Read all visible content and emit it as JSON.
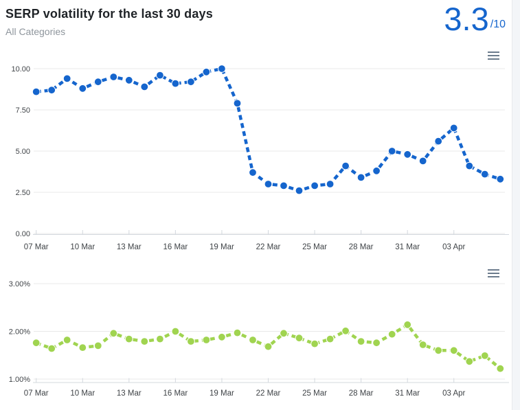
{
  "header": {
    "title": "SERP volatility for the last 30 days",
    "subtitle": "All Categories",
    "score": "3.3",
    "score_suffix": "/10",
    "score_color": "#1565cd"
  },
  "icons": {
    "chart1_menu": "hamburger-menu",
    "chart2_menu": "hamburger-menu"
  },
  "colors": {
    "card_background": "#ffffff",
    "page_band": "#f3f5f8",
    "grid": "#e8e8e8",
    "axis_line": "#d3d8de",
    "axis_label": "#3f4347",
    "blue_series": "#1565cd",
    "green_series": "#a0d450",
    "title_text": "#1f2327",
    "subtitle_text": "#8e959c"
  },
  "chart_data": [
    {
      "type": "line",
      "id": "volatility-score-chart",
      "line_style": "dashed",
      "marker": "circle",
      "grid": true,
      "legend": "none",
      "color": "#1565cd",
      "ylim": [
        0,
        10
      ],
      "yticks": [
        {
          "v": 0,
          "label": "0.00"
        },
        {
          "v": 2.5,
          "label": "2.50"
        },
        {
          "v": 5,
          "label": "5.00"
        },
        {
          "v": 7.5,
          "label": "7.50"
        },
        {
          "v": 10,
          "label": "10.00"
        }
      ],
      "xticks": [
        {
          "i": 0,
          "label": "07 Mar"
        },
        {
          "i": 3,
          "label": "10 Mar"
        },
        {
          "i": 6,
          "label": "13 Mar"
        },
        {
          "i": 9,
          "label": "16 Mar"
        },
        {
          "i": 12,
          "label": "19 Mar"
        },
        {
          "i": 15,
          "label": "22 Mar"
        },
        {
          "i": 18,
          "label": "25 Mar"
        },
        {
          "i": 21,
          "label": "28 Mar"
        },
        {
          "i": 24,
          "label": "31 Mar"
        },
        {
          "i": 27,
          "label": "03 Apr"
        }
      ],
      "x": [
        "07 Mar",
        "08 Mar",
        "09 Mar",
        "10 Mar",
        "11 Mar",
        "12 Mar",
        "13 Mar",
        "14 Mar",
        "15 Mar",
        "16 Mar",
        "17 Mar",
        "18 Mar",
        "19 Mar",
        "20 Mar",
        "21 Mar",
        "22 Mar",
        "23 Mar",
        "24 Mar",
        "25 Mar",
        "26 Mar",
        "27 Mar",
        "28 Mar",
        "29 Mar",
        "30 Mar",
        "31 Mar",
        "01 Apr",
        "02 Apr",
        "03 Apr",
        "04 Apr",
        "05 Apr",
        "06 Apr"
      ],
      "values": [
        8.6,
        8.7,
        9.4,
        8.8,
        9.2,
        9.5,
        9.3,
        8.9,
        9.6,
        9.1,
        9.2,
        9.8,
        10.0,
        7.9,
        3.7,
        3.0,
        2.9,
        2.6,
        2.9,
        3.0,
        4.1,
        3.4,
        3.8,
        5.0,
        4.8,
        4.4,
        5.6,
        6.4,
        4.1,
        3.6,
        3.3
      ]
    },
    {
      "type": "line",
      "id": "volatility-percent-chart",
      "line_style": "dashed",
      "marker": "circle",
      "grid": true,
      "legend": "none",
      "color": "#a0d450",
      "ylim": [
        1,
        3
      ],
      "yticks": [
        {
          "v": 1,
          "label": "1.00%"
        },
        {
          "v": 2,
          "label": "2.00%"
        },
        {
          "v": 3,
          "label": "3.00%"
        }
      ],
      "xticks": [
        {
          "i": 0,
          "label": "07 Mar"
        },
        {
          "i": 3,
          "label": "10 Mar"
        },
        {
          "i": 6,
          "label": "13 Mar"
        },
        {
          "i": 9,
          "label": "16 Mar"
        },
        {
          "i": 12,
          "label": "19 Mar"
        },
        {
          "i": 15,
          "label": "22 Mar"
        },
        {
          "i": 18,
          "label": "25 Mar"
        },
        {
          "i": 21,
          "label": "28 Mar"
        },
        {
          "i": 24,
          "label": "31 Mar"
        },
        {
          "i": 27,
          "label": "03 Apr"
        }
      ],
      "x": [
        "07 Mar",
        "08 Mar",
        "09 Mar",
        "10 Mar",
        "11 Mar",
        "12 Mar",
        "13 Mar",
        "14 Mar",
        "15 Mar",
        "16 Mar",
        "17 Mar",
        "18 Mar",
        "19 Mar",
        "20 Mar",
        "21 Mar",
        "22 Mar",
        "23 Mar",
        "24 Mar",
        "25 Mar",
        "26 Mar",
        "27 Mar",
        "28 Mar",
        "29 Mar",
        "30 Mar",
        "31 Mar",
        "01 Apr",
        "02 Apr",
        "03 Apr",
        "04 Apr",
        "05 Apr",
        "06 Apr"
      ],
      "values": [
        1.76,
        1.64,
        1.82,
        1.66,
        1.7,
        1.96,
        1.84,
        1.79,
        1.84,
        2.0,
        1.79,
        1.82,
        1.88,
        1.97,
        1.82,
        1.68,
        1.96,
        1.86,
        1.74,
        1.84,
        2.01,
        1.79,
        1.76,
        1.94,
        2.14,
        1.72,
        1.6,
        1.6,
        1.37,
        1.49,
        1.22
      ]
    }
  ]
}
